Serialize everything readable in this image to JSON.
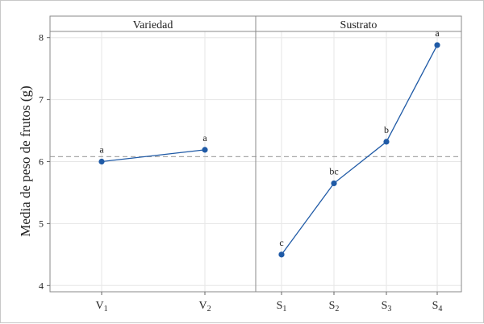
{
  "chart_data": {
    "type": "line",
    "ylabel": "Media de peso de frutos (g)",
    "ylim": [
      3.9,
      8.1
    ],
    "yticks": [
      4,
      5,
      6,
      7,
      8
    ],
    "reference_line": 6.08,
    "point_color": "#1f5aa6",
    "panels": [
      {
        "name": "Variedad",
        "categories": [
          {
            "base": "V",
            "sub": "1"
          },
          {
            "base": "V",
            "sub": "2"
          }
        ],
        "values": [
          6.0,
          6.19
        ],
        "letters": [
          "a",
          "a"
        ]
      },
      {
        "name": "Sustrato",
        "categories": [
          {
            "base": "S",
            "sub": "1"
          },
          {
            "base": "S",
            "sub": "2"
          },
          {
            "base": "S",
            "sub": "3"
          },
          {
            "base": "S",
            "sub": "4"
          }
        ],
        "values": [
          4.5,
          5.65,
          6.32,
          7.88
        ],
        "letters": [
          "c",
          "bc",
          "b",
          "a"
        ]
      }
    ]
  }
}
